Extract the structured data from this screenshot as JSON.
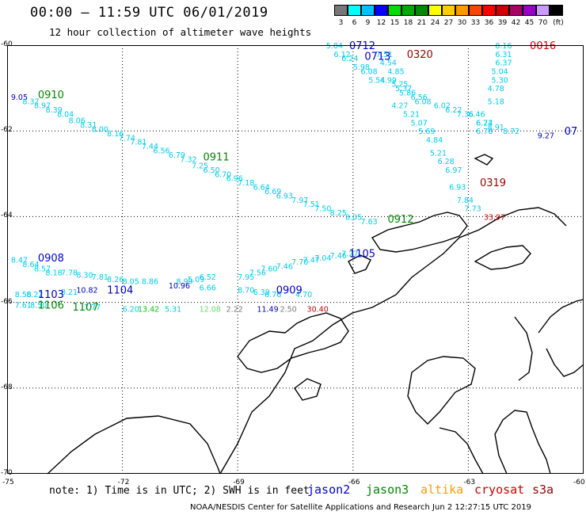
{
  "header": {
    "title": "00:00 – 11:59 UTC 06/01/2019",
    "subtitle": "12 hour collection of altimeter wave heights"
  },
  "scale": {
    "colors": [
      "#777777",
      "#00ffff",
      "#00c0ff",
      "#0000ff",
      "#00dd00",
      "#00aa00",
      "#008800",
      "#ffff00",
      "#ffcc00",
      "#ff9900",
      "#ff4400",
      "#ff0000",
      "#cc0000",
      "#aa0066",
      "#9900cc",
      "#cc99ff",
      "#000000"
    ],
    "labels": [
      "3",
      "6",
      "9",
      "12",
      "15",
      "18",
      "21",
      "24",
      "27",
      "30",
      "33",
      "36",
      "39",
      "42",
      "45",
      "70",
      "(ft)"
    ]
  },
  "axes": {
    "lat_labels": [
      "-60",
      "-62",
      "-64",
      "-66",
      "-68",
      "-70"
    ],
    "lon_labels": [
      "-75",
      "-72",
      "-69",
      "-66",
      "-63",
      "-60"
    ]
  },
  "note": "note:  1) Time is in UTC; 2) SWH is in feet",
  "legend": [
    {
      "label": "jason2",
      "color": "#0000cc"
    },
    {
      "label": "jason3",
      "color": "#008800"
    },
    {
      "label": "altika",
      "color": "#ff9900"
    },
    {
      "label": "cryosat",
      "color": "#cc0000"
    },
    {
      "label": "s3a",
      "color": "#990000"
    }
  ],
  "footer": "NOAA/NESDIS Center for Satellite Applications and Research   Jun  2 12:27:15 UTC 2019",
  "wave_values": [
    {
      "v": "5.84",
      "c": "#00ccee",
      "lon": -66.7,
      "lat": -60.0
    },
    {
      "v": "6.12",
      "c": "#00ccee",
      "lon": -66.5,
      "lat": -60.2
    },
    {
      "v": "6.24",
      "c": "#00ccee",
      "lon": -66.3,
      "lat": -60.3
    },
    {
      "v": "5.98",
      "c": "#00ccee",
      "lon": -66.0,
      "lat": -60.5
    },
    {
      "v": "6.08",
      "c": "#00ccee",
      "lon": -65.8,
      "lat": -60.6
    },
    {
      "v": "5.54",
      "c": "#00ccee",
      "lon": -65.6,
      "lat": -60.8
    },
    {
      "v": "7.51",
      "c": "#00ccee",
      "lon": -65.4,
      "lat": -60.2
    },
    {
      "v": "4.54",
      "c": "#00ccee",
      "lon": -65.3,
      "lat": -60.4
    },
    {
      "v": "4.85",
      "c": "#00ccee",
      "lon": -65.1,
      "lat": -60.6
    },
    {
      "v": "4.99",
      "c": "#00ccee",
      "lon": -65.3,
      "lat": -60.8
    },
    {
      "v": "5.25",
      "c": "#00ccee",
      "lon": -65.0,
      "lat": -60.9
    },
    {
      "v": "5.37",
      "c": "#00ccee",
      "lon": -64.9,
      "lat": -61.0
    },
    {
      "v": "5.86",
      "c": "#00ccee",
      "lon": -64.8,
      "lat": -61.1
    },
    {
      "v": "6.56",
      "c": "#00ccee",
      "lon": -64.5,
      "lat": -61.2
    },
    {
      "v": "4.27",
      "c": "#00ccee",
      "lon": -65.0,
      "lat": -61.4
    },
    {
      "v": "5.21",
      "c": "#00ccee",
      "lon": -64.7,
      "lat": -61.6
    },
    {
      "v": "5.07",
      "c": "#00ccee",
      "lon": -64.5,
      "lat": -61.8
    },
    {
      "v": "5.69",
      "c": "#00ccee",
      "lon": -64.3,
      "lat": -62.0
    },
    {
      "v": "4.84",
      "c": "#00ccee",
      "lon": -64.1,
      "lat": -62.2
    },
    {
      "v": "5.21",
      "c": "#00ccee",
      "lon": -64.0,
      "lat": -62.5
    },
    {
      "v": "6.28",
      "c": "#00ccee",
      "lon": -63.8,
      "lat": -62.7
    },
    {
      "v": "6.97",
      "c": "#00ccee",
      "lon": -63.6,
      "lat": -62.9
    },
    {
      "v": "6.93",
      "c": "#00ccee",
      "lon": -63.5,
      "lat": -63.3
    },
    {
      "v": "7.84",
      "c": "#00ccee",
      "lon": -63.3,
      "lat": -63.6
    },
    {
      "v": "7.73",
      "c": "#00ccee",
      "lon": -63.1,
      "lat": -63.8
    },
    {
      "v": "6.08",
      "c": "#00ccee",
      "lon": -64.4,
      "lat": -61.3
    },
    {
      "v": "6.02",
      "c": "#00ccee",
      "lon": -63.9,
      "lat": -61.4
    },
    {
      "v": "6.22",
      "c": "#00ccee",
      "lon": -63.6,
      "lat": -61.5
    },
    {
      "v": "7.36",
      "c": "#00ccee",
      "lon": -63.3,
      "lat": -61.6
    },
    {
      "v": "6.46",
      "c": "#00ccee",
      "lon": -63.0,
      "lat": -61.6
    },
    {
      "v": "6.77",
      "c": "#00ccee",
      "lon": -62.8,
      "lat": -61.8
    },
    {
      "v": "8.91",
      "c": "#00ccee",
      "lon": -62.5,
      "lat": -61.9
    },
    {
      "v": "8.72",
      "c": "#00ccee",
      "lon": -62.1,
      "lat": -62.0
    },
    {
      "v": "8.16",
      "c": "#00ccee",
      "lon": -62.3,
      "lat": -60.0
    },
    {
      "v": "6.31",
      "c": "#00ccee",
      "lon": -62.3,
      "lat": -60.2
    },
    {
      "v": "6.37",
      "c": "#00ccee",
      "lon": -62.3,
      "lat": -60.4
    },
    {
      "v": "5.04",
      "c": "#00ccee",
      "lon": -62.4,
      "lat": -60.6
    },
    {
      "v": "5.30",
      "c": "#00ccee",
      "lon": -62.4,
      "lat": -60.8
    },
    {
      "v": "4.78",
      "c": "#00ccee",
      "lon": -62.5,
      "lat": -61.0
    },
    {
      "v": "5.18",
      "c": "#00ccee",
      "lon": -62.5,
      "lat": -61.3
    },
    {
      "v": "6.24",
      "c": "#00ccee",
      "lon": -62.8,
      "lat": -61.8
    },
    {
      "v": "6.78",
      "c": "#00ccee",
      "lon": -62.8,
      "lat": -62.0
    },
    {
      "v": "9.05",
      "c": "#0000cc",
      "lon": -74.9,
      "lat": -61.2
    },
    {
      "v": "8.37",
      "c": "#00ccee",
      "lon": -74.6,
      "lat": -61.3
    },
    {
      "v": "8.97",
      "c": "#00ccee",
      "lon": -74.3,
      "lat": -61.4
    },
    {
      "v": "8.39",
      "c": "#00ccee",
      "lon": -74.0,
      "lat": -61.5
    },
    {
      "v": "8.04",
      "c": "#00ccee",
      "lon": -73.7,
      "lat": -61.6
    },
    {
      "v": "8.06",
      "c": "#00ccee",
      "lon": -73.4,
      "lat": -61.75
    },
    {
      "v": "8.31",
      "c": "#00ccee",
      "lon": -73.1,
      "lat": -61.85
    },
    {
      "v": "8.00",
      "c": "#00ccee",
      "lon": -72.8,
      "lat": -61.95
    },
    {
      "v": "8.16",
      "c": "#00ccee",
      "lon": -72.4,
      "lat": -62.05
    },
    {
      "v": "7.74",
      "c": "#00ccee",
      "lon": -72.1,
      "lat": -62.15
    },
    {
      "v": "7.81",
      "c": "#00ccee",
      "lon": -71.8,
      "lat": -62.25
    },
    {
      "v": "7.44",
      "c": "#00ccee",
      "lon": -71.5,
      "lat": -62.35
    },
    {
      "v": "6.56",
      "c": "#00ccee",
      "lon": -71.2,
      "lat": -62.45
    },
    {
      "v": "6.79",
      "c": "#00ccee",
      "lon": -70.8,
      "lat": -62.55
    },
    {
      "v": "7.32",
      "c": "#00ccee",
      "lon": -70.5,
      "lat": -62.65
    },
    {
      "v": "7.25",
      "c": "#00ccee",
      "lon": -70.2,
      "lat": -62.8
    },
    {
      "v": "6.50",
      "c": "#00ccee",
      "lon": -69.9,
      "lat": -62.9
    },
    {
      "v": "6.70",
      "c": "#00ccee",
      "lon": -69.6,
      "lat": -63.0
    },
    {
      "v": "6.96",
      "c": "#00ccee",
      "lon": -69.3,
      "lat": -63.1
    },
    {
      "v": "7.18",
      "c": "#00ccee",
      "lon": -69.0,
      "lat": -63.2
    },
    {
      "v": "6.64",
      "c": "#00ccee",
      "lon": -68.6,
      "lat": -63.3
    },
    {
      "v": "6.69",
      "c": "#00ccee",
      "lon": -68.3,
      "lat": -63.4
    },
    {
      "v": "6.93",
      "c": "#00ccee",
      "lon": -68.0,
      "lat": -63.5
    },
    {
      "v": "7.97",
      "c": "#00ccee",
      "lon": -67.6,
      "lat": -63.6
    },
    {
      "v": "7.51",
      "c": "#00ccee",
      "lon": -67.3,
      "lat": -63.7
    },
    {
      "v": "7.50",
      "c": "#00ccee",
      "lon": -67.0,
      "lat": -63.8
    },
    {
      "v": "8.25",
      "c": "#00ccee",
      "lon": -66.6,
      "lat": -63.9
    },
    {
      "v": "8.05",
      "c": "#00ccee",
      "lon": -66.2,
      "lat": -64.0
    },
    {
      "v": "7.63",
      "c": "#00ccee",
      "lon": -65.8,
      "lat": -64.1
    },
    {
      "v": "33.97",
      "c": "#cc0000",
      "lon": -62.6,
      "lat": -64.0
    },
    {
      "v": "8.47",
      "c": "#00ccee",
      "lon": -74.9,
      "lat": -65.0
    },
    {
      "v": "8.64",
      "c": "#00ccee",
      "lon": -74.6,
      "lat": -65.1
    },
    {
      "v": "8.57",
      "c": "#00ccee",
      "lon": -74.3,
      "lat": -65.2
    },
    {
      "v": "8.18",
      "c": "#00ccee",
      "lon": -74.0,
      "lat": -65.3
    },
    {
      "v": "7.78",
      "c": "#00ccee",
      "lon": -73.6,
      "lat": -65.3
    },
    {
      "v": "8.30",
      "c": "#00ccee",
      "lon": -73.2,
      "lat": -65.35
    },
    {
      "v": "7.81",
      "c": "#00ccee",
      "lon": -72.8,
      "lat": -65.4
    },
    {
      "v": "8.26",
      "c": "#00ccee",
      "lon": -72.4,
      "lat": -65.45
    },
    {
      "v": "8.05",
      "c": "#00ccee",
      "lon": -72.0,
      "lat": -65.5
    },
    {
      "v": "8.86",
      "c": "#00ccee",
      "lon": -71.5,
      "lat": -65.5
    },
    {
      "v": "8.99",
      "c": "#00ccee",
      "lon": -70.6,
      "lat": -65.5
    },
    {
      "v": "5.09",
      "c": "#00ccee",
      "lon": -70.3,
      "lat": -65.45
    },
    {
      "v": "6.52",
      "c": "#00ccee",
      "lon": -70.0,
      "lat": -65.4
    },
    {
      "v": "10.96",
      "c": "#0000cc",
      "lon": -70.8,
      "lat": -65.6
    },
    {
      "v": "6.66",
      "c": "#00ccee",
      "lon": -70.0,
      "lat": -65.65
    },
    {
      "v": "7.95",
      "c": "#00ccee",
      "lon": -69.0,
      "lat": -65.4
    },
    {
      "v": "7.56",
      "c": "#00ccee",
      "lon": -68.7,
      "lat": -65.3
    },
    {
      "v": "7.60",
      "c": "#00ccee",
      "lon": -68.4,
      "lat": -65.2
    },
    {
      "v": "7.46",
      "c": "#00ccee",
      "lon": -68.0,
      "lat": -65.15
    },
    {
      "v": "7.70",
      "c": "#00ccee",
      "lon": -67.6,
      "lat": -65.05
    },
    {
      "v": "7.47",
      "c": "#00ccee",
      "lon": -67.3,
      "lat": -65.0
    },
    {
      "v": "7.04",
      "c": "#00ccee",
      "lon": -67.0,
      "lat": -64.95
    },
    {
      "v": "7.46",
      "c": "#00ccee",
      "lon": -66.6,
      "lat": -64.9
    },
    {
      "v": "7.27",
      "c": "#00ccee",
      "lon": -66.3,
      "lat": -64.85
    },
    {
      "v": "8.70",
      "c": "#00ccee",
      "lon": -69.0,
      "lat": -65.7
    },
    {
      "v": "6.39",
      "c": "#00ccee",
      "lon": -68.6,
      "lat": -65.75
    },
    {
      "v": "6.76",
      "c": "#00ccee",
      "lon": -68.3,
      "lat": -65.8
    },
    {
      "v": "4.70",
      "c": "#00ccee",
      "lon": -67.5,
      "lat": -65.8
    },
    {
      "v": "8.58",
      "c": "#00ccee",
      "lon": -74.8,
      "lat": -65.8
    },
    {
      "v": "8.22",
      "c": "#00ccee",
      "lon": -74.5,
      "lat": -65.8
    },
    {
      "v": "8.21",
      "c": "#00ccee",
      "lon": -73.6,
      "lat": -65.75
    },
    {
      "v": "10.82",
      "c": "#0000cc",
      "lon": -73.2,
      "lat": -65.7
    },
    {
      "v": "7.61",
      "c": "#00ccee",
      "lon": -74.8,
      "lat": -66.05
    },
    {
      "v": "8.50",
      "c": "#00ccee",
      "lon": -74.4,
      "lat": -66.05
    },
    {
      "v": "7.77",
      "c": "#00ccee",
      "lon": -73.0,
      "lat": -66.1
    },
    {
      "v": "6.20",
      "c": "#00ccee",
      "lon": -72.0,
      "lat": -66.15
    },
    {
      "v": "13.42",
      "c": "#00cc00",
      "lon": -71.6,
      "lat": -66.15
    },
    {
      "v": "5.31",
      "c": "#00ccee",
      "lon": -70.9,
      "lat": -66.15
    },
    {
      "v": "12.08",
      "c": "#66dd66",
      "lon": -70.0,
      "lat": -66.15
    },
    {
      "v": "2.22",
      "c": "#777777",
      "lon": -69.3,
      "lat": -66.15
    },
    {
      "v": "11.49",
      "c": "#0000cc",
      "lon": -68.5,
      "lat": -66.15
    },
    {
      "v": "2.50",
      "c": "#777777",
      "lon": -67.9,
      "lat": -66.15
    },
    {
      "v": "30.40",
      "c": "#cc0000",
      "lon": -67.2,
      "lat": -66.15
    },
    {
      "v": "9.27",
      "c": "#0000cc",
      "lon": -61.2,
      "lat": -62.1
    }
  ],
  "time_labels": [
    {
      "t": "0712",
      "c": "#0000cc",
      "lon": -66.1,
      "lat": -60.0
    },
    {
      "t": "0713",
      "c": "#0000cc",
      "lon": -65.7,
      "lat": -60.25
    },
    {
      "t": "0320",
      "c": "#990000",
      "lon": -64.6,
      "lat": -60.2
    },
    {
      "t": "0016",
      "c": "#cc0000",
      "lon": -61.4,
      "lat": -60.0
    },
    {
      "t": "0910",
      "c": "#008800",
      "lon": -74.2,
      "lat": -61.15
    },
    {
      "t": "0911",
      "c": "#008800",
      "lon": -69.9,
      "lat": -62.6
    },
    {
      "t": "0319",
      "c": "#990000",
      "lon": -62.7,
      "lat": -63.2
    },
    {
      "t": "0912",
      "c": "#008800",
      "lon": -65.1,
      "lat": -64.05
    },
    {
      "t": "0908",
      "c": "#0000cc",
      "lon": -74.2,
      "lat": -64.95
    },
    {
      "t": "1105",
      "c": "#0000cc",
      "lon": -66.1,
      "lat": -64.85
    },
    {
      "t": "1104",
      "c": "#0000cc",
      "lon": -72.4,
      "lat": -65.7
    },
    {
      "t": "0909",
      "c": "#0000cc",
      "lon": -68.0,
      "lat": -65.7
    },
    {
      "t": "1103",
      "c": "#0000cc",
      "lon": -74.2,
      "lat": -65.8
    },
    {
      "t": "1106",
      "c": "#008800",
      "lon": -74.2,
      "lat": -66.05
    },
    {
      "t": "1107",
      "c": "#008800",
      "lon": -73.3,
      "lat": -66.1
    },
    {
      "t": "07",
      "c": "#0000cc",
      "lon": -60.5,
      "lat": -62.0
    }
  ]
}
